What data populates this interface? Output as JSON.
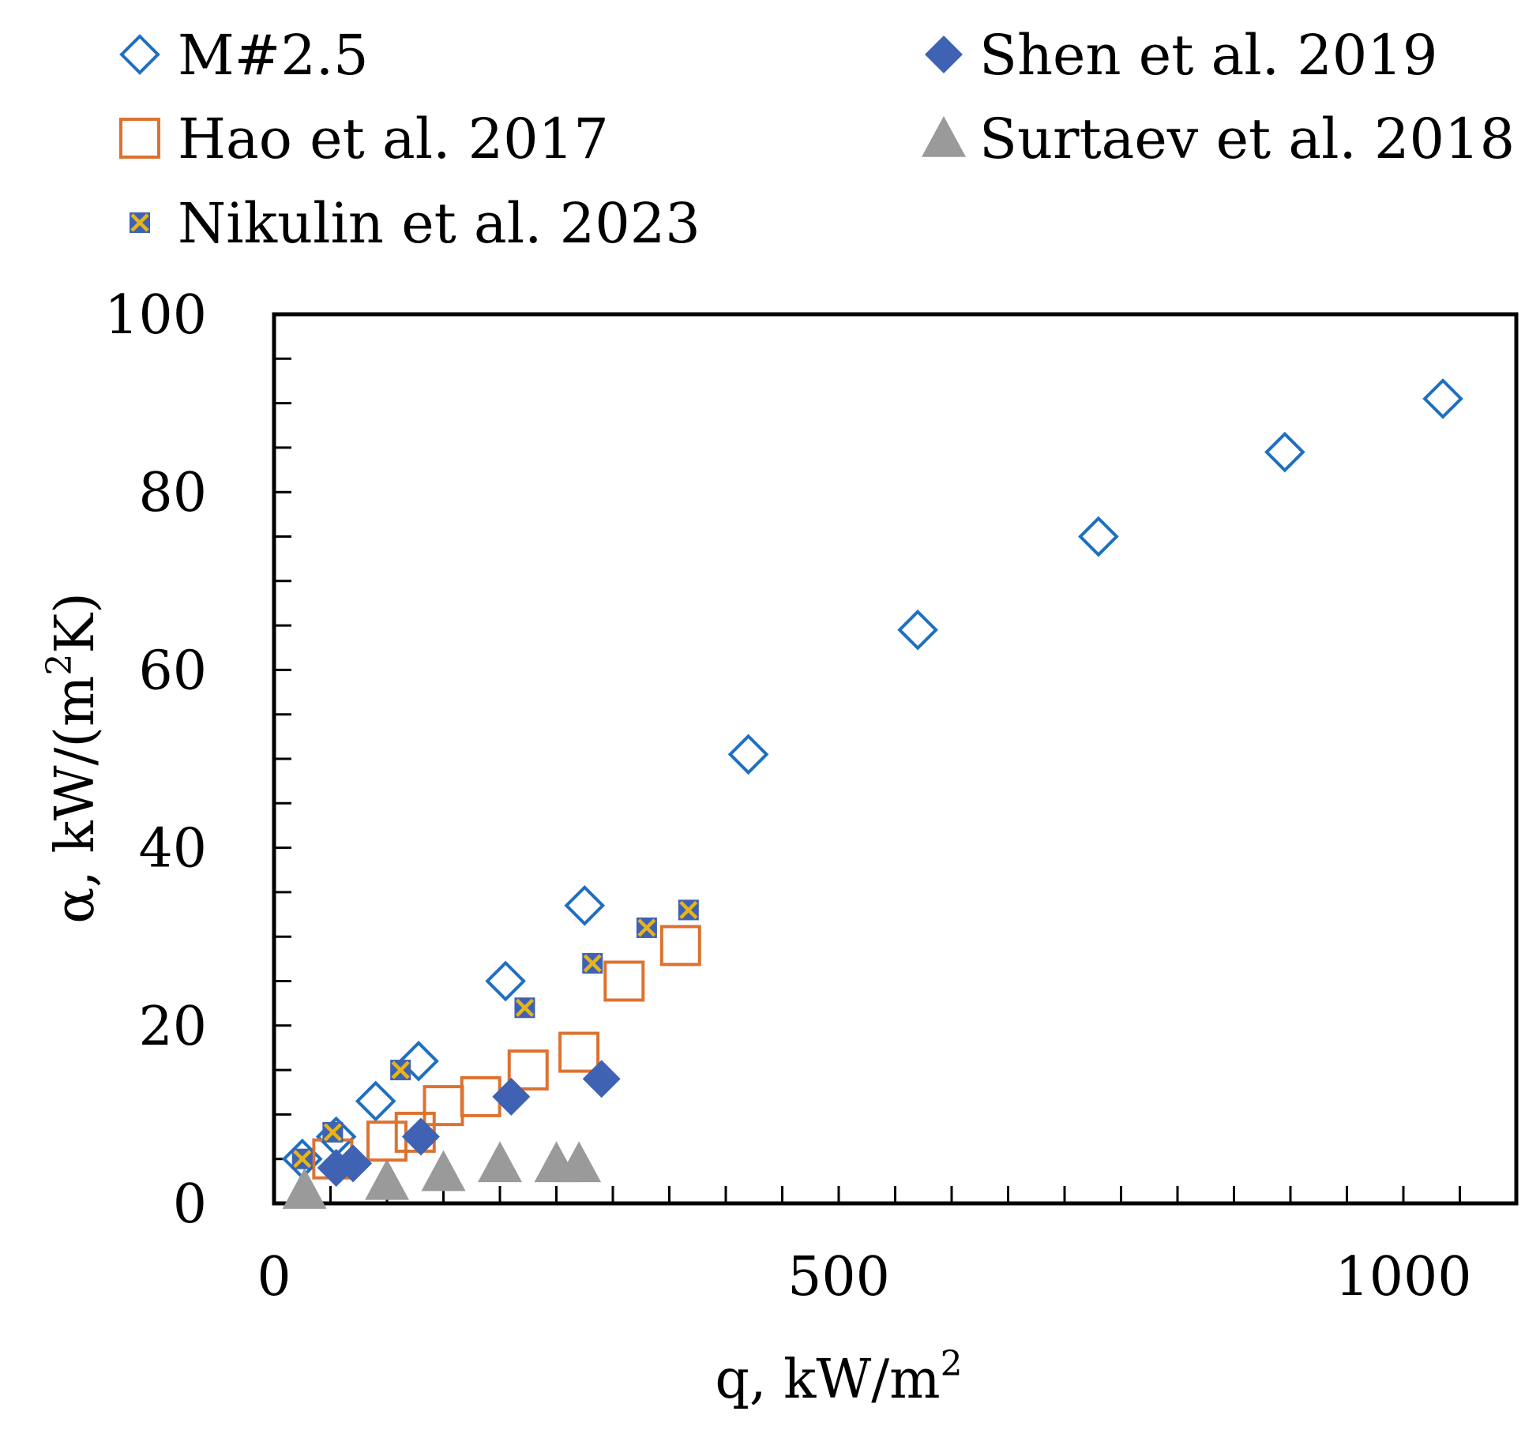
{
  "chart_data": {
    "type": "scatter",
    "title": "",
    "xlabel": "q, kW/m",
    "xlabel_sup": "2",
    "ylabel_pre": "α, kW/(m",
    "ylabel_sup": "2",
    "ylabel_post": "K)",
    "xlim": [
      0,
      1100
    ],
    "ylim": [
      0,
      100
    ],
    "x_ticks": [
      0,
      500,
      1000
    ],
    "x_tick_labels": [
      "0",
      "500",
      "1000"
    ],
    "y_ticks": [
      0,
      20,
      40,
      60,
      80,
      100
    ],
    "y_tick_labels": [
      "0",
      "20",
      "40",
      "60",
      "80",
      "100"
    ],
    "x_minor_step": 50,
    "y_minor_step": 5,
    "grid": false,
    "legend_position": "top",
    "series": [
      {
        "name": "M#2.5",
        "marker": "diamond-open",
        "color": "#1f6fc0",
        "x": [
          25,
          55,
          90,
          128,
          205,
          275,
          420,
          570,
          730,
          895,
          1035
        ],
        "y": [
          5,
          7.5,
          11.5,
          16,
          25,
          33.5,
          50.5,
          64.5,
          75,
          84.5,
          90.5
        ]
      },
      {
        "name": "Shen et al. 2019",
        "marker": "diamond-filled",
        "color": "#3f62b2",
        "x": [
          55,
          70,
          130,
          210,
          290
        ],
        "y": [
          4,
          4.5,
          7.5,
          12,
          14
        ]
      },
      {
        "name": "Hao et al. 2017",
        "marker": "square-open",
        "color": "#dd7230",
        "x": [
          52,
          100,
          125,
          150,
          183,
          225,
          270,
          310,
          360
        ],
        "y": [
          5,
          7,
          8,
          11,
          12,
          15,
          17,
          25,
          29
        ]
      },
      {
        "name": "Surtaev et al. 2018",
        "marker": "triangle-filled",
        "color": "#9a9a9a",
        "x": [
          27,
          100,
          150,
          200,
          250,
          270
        ],
        "y": [
          1.5,
          2.5,
          3.5,
          4.5,
          4.5,
          4.5
        ]
      },
      {
        "name": "Nikulin et al. 2023",
        "marker": "x-square",
        "color": "#3e62b0",
        "x_color": "#e8b418",
        "x": [
          25,
          52,
          112,
          222,
          282,
          330,
          367
        ],
        "y": [
          5,
          8,
          15,
          22,
          27,
          31,
          33
        ]
      }
    ]
  }
}
